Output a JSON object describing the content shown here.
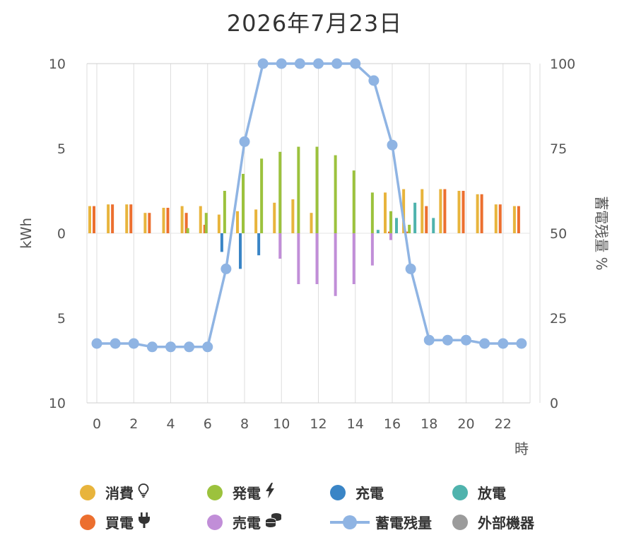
{
  "title": "2026年7月23日",
  "chart_data": {
    "type": "bar",
    "title": "2026年7月23日",
    "xlabel": "時",
    "ylabel_left": "kWh",
    "ylabel_right": "蓄電残量 %",
    "x_ticks": [
      "0",
      "2",
      "4",
      "6",
      "8",
      "10",
      "12",
      "14",
      "16",
      "18",
      "20",
      "22"
    ],
    "y_left_ticks": [
      "10",
      "5",
      "0",
      "5",
      "10"
    ],
    "y_right_ticks": [
      "100",
      "75",
      "50",
      "25",
      "0"
    ],
    "ylim_left": [
      -10,
      10
    ],
    "ylim_right": [
      0,
      100
    ],
    "grid": "vertical",
    "hours": [
      0,
      1,
      2,
      3,
      4,
      5,
      6,
      7,
      8,
      9,
      10,
      11,
      12,
      13,
      14,
      15,
      16,
      17,
      18,
      19,
      20,
      21,
      22,
      23
    ],
    "series": [
      {
        "name": "消費",
        "color": "#e8b43c",
        "values": [
          1.6,
          1.7,
          1.7,
          1.2,
          1.5,
          1.6,
          1.6,
          1.1,
          1.3,
          1.4,
          1.8,
          2.0,
          1.2,
          0,
          0,
          0,
          2.4,
          2.6,
          2.6,
          2.6,
          2.5,
          2.3,
          1.7,
          1.6
        ]
      },
      {
        "name": "買電",
        "color": "#ec6f2f",
        "values": [
          1.6,
          1.7,
          1.7,
          1.2,
          1.5,
          1.2,
          0.5,
          0,
          0,
          0,
          0,
          0,
          0,
          0,
          0,
          0,
          0.1,
          0.1,
          1.6,
          2.6,
          2.5,
          2.3,
          1.7,
          1.6
        ]
      },
      {
        "name": "発電",
        "color": "#9cc23d",
        "values": [
          0,
          0,
          0,
          0,
          0,
          0.3,
          1.2,
          2.5,
          3.5,
          4.4,
          4.8,
          5.1,
          5.1,
          4.6,
          3.7,
          2.4,
          1.3,
          0.5,
          0,
          0,
          0,
          0,
          0,
          0
        ]
      },
      {
        "name": "売電",
        "color": "#c18ed8",
        "values": [
          0,
          0,
          0,
          0,
          0,
          0,
          0,
          0,
          0,
          0,
          -1.5,
          -3.0,
          -3.0,
          -3.7,
          -3.0,
          -1.9,
          -0.4,
          0,
          0,
          0,
          0,
          0,
          0,
          0
        ]
      },
      {
        "name": "充電",
        "color": "#3a85c6",
        "values": [
          0,
          0,
          0,
          0,
          0,
          0,
          0,
          -1.1,
          -2.1,
          -1.3,
          0,
          0,
          0,
          0,
          0,
          0,
          0,
          0,
          0,
          0,
          0,
          0,
          0,
          0
        ]
      },
      {
        "name": "放電",
        "color": "#4fb3ad",
        "values": [
          0,
          0,
          0,
          0,
          0,
          0,
          0,
          0,
          0,
          0,
          0,
          0,
          0,
          0,
          0,
          0.2,
          0.9,
          1.8,
          0.9,
          0,
          0,
          0,
          0,
          0
        ]
      },
      {
        "name": "外部機器",
        "color": "#9b9b9b",
        "values": [
          0,
          0,
          0,
          0,
          0,
          0,
          0,
          0,
          0,
          0,
          0,
          0,
          0,
          0,
          0,
          0,
          0,
          0,
          0,
          0,
          0,
          0,
          0,
          0
        ]
      }
    ],
    "soc_series": {
      "name": "蓄電残量",
      "color": "#8fb4e3",
      "values": [
        17.5,
        17.5,
        17.5,
        16.5,
        16.5,
        16.5,
        16.5,
        39.5,
        77,
        100,
        100,
        100,
        100,
        100,
        100,
        95,
        76,
        39.5,
        18.5,
        18.5,
        18.5,
        17.5,
        17.5,
        17.5
      ]
    }
  },
  "legend": [
    {
      "label": "消費",
      "color": "#e8b43c",
      "icon": "lightbulb-icon"
    },
    {
      "label": "発電",
      "color": "#9cc23d",
      "icon": "lightning-icon"
    },
    {
      "label": "充電",
      "color": "#3a85c6",
      "icon": ""
    },
    {
      "label": "放電",
      "color": "#4fb3ad",
      "icon": ""
    },
    {
      "label": "買電",
      "color": "#ec6f2f",
      "icon": "plug-icon"
    },
    {
      "label": "売電",
      "color": "#c18ed8",
      "icon": "coins-icon"
    },
    {
      "label": "蓄電残量",
      "color": "#8fb4e3",
      "icon": "line-marker"
    },
    {
      "label": "外部機器",
      "color": "#9b9b9b",
      "icon": ""
    }
  ]
}
